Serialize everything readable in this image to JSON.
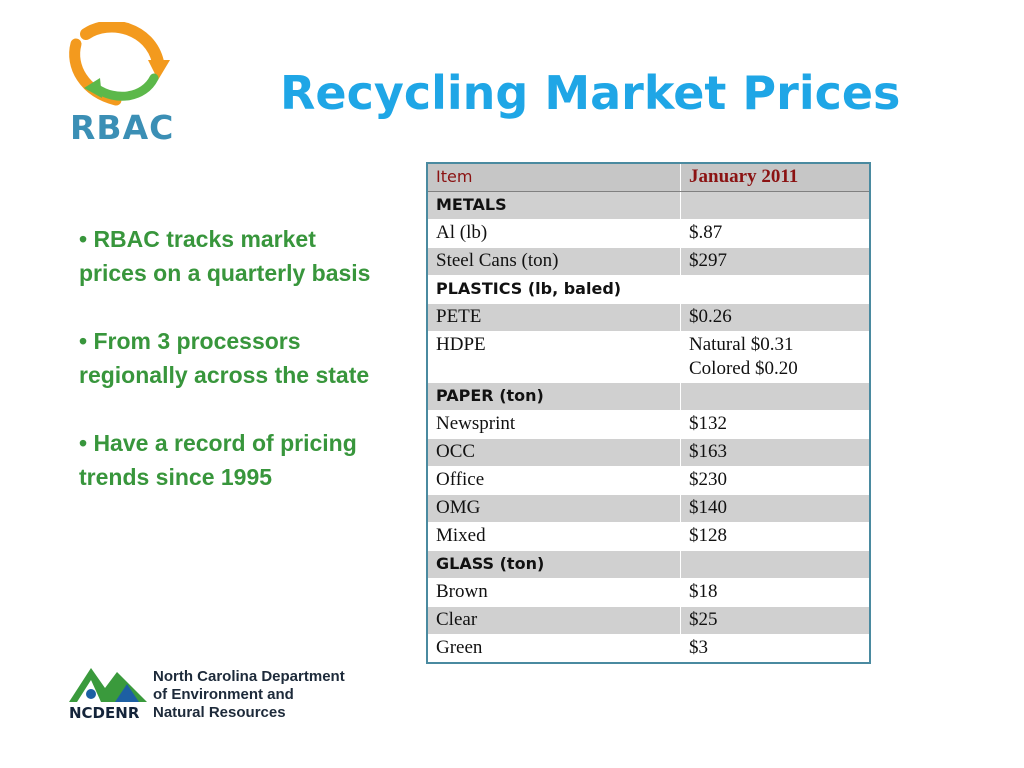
{
  "logo": {
    "text": "RBAC",
    "colors": {
      "orange": "#f39a1e",
      "green": "#5cb84a",
      "blue": "#3b8fb5"
    }
  },
  "title": "Recycling Market Prices",
  "bullets": [
    "• RBAC tracks market prices on a quarterly basis",
    "•  From 3 processors regionally across the state",
    "•  Have a record of pricing trends since 1995"
  ],
  "table": {
    "header": {
      "item": "Item",
      "period": "January 2011"
    },
    "rows": [
      {
        "kind": "cat",
        "item": "METALS",
        "price": ""
      },
      {
        "kind": "row",
        "item": "Al (lb)",
        "price": "$.87"
      },
      {
        "kind": "row",
        "item": "Steel Cans (ton)",
        "price": "$297"
      },
      {
        "kind": "cat",
        "item": "PLASTICS (lb, baled)",
        "price": ""
      },
      {
        "kind": "row",
        "item": "PETE",
        "price": "$0.26"
      },
      {
        "kind": "row",
        "item": "HDPE",
        "price": "Natural  $0.31",
        "price2": "Colored $0.20"
      },
      {
        "kind": "cat",
        "item": "PAPER (ton)",
        "price": ""
      },
      {
        "kind": "row",
        "item": "Newsprint",
        "price": "$132"
      },
      {
        "kind": "row",
        "item": "OCC",
        "price": "$163"
      },
      {
        "kind": "row",
        "item": "Office",
        "price": "$230"
      },
      {
        "kind": "row",
        "item": "OMG",
        "price": "$140"
      },
      {
        "kind": "row",
        "item": "Mixed",
        "price": "$128"
      },
      {
        "kind": "cat",
        "item": "GLASS (ton)",
        "price": ""
      },
      {
        "kind": "row",
        "item": "Brown",
        "price": "$18"
      },
      {
        "kind": "row",
        "item": "Clear",
        "price": "$25"
      },
      {
        "kind": "row",
        "item": "Green",
        "price": "$3"
      }
    ]
  },
  "footer": {
    "abbr": "NCDENR",
    "lines": [
      "North Carolina Department",
      "of Environment and",
      "Natural Resources"
    ]
  }
}
